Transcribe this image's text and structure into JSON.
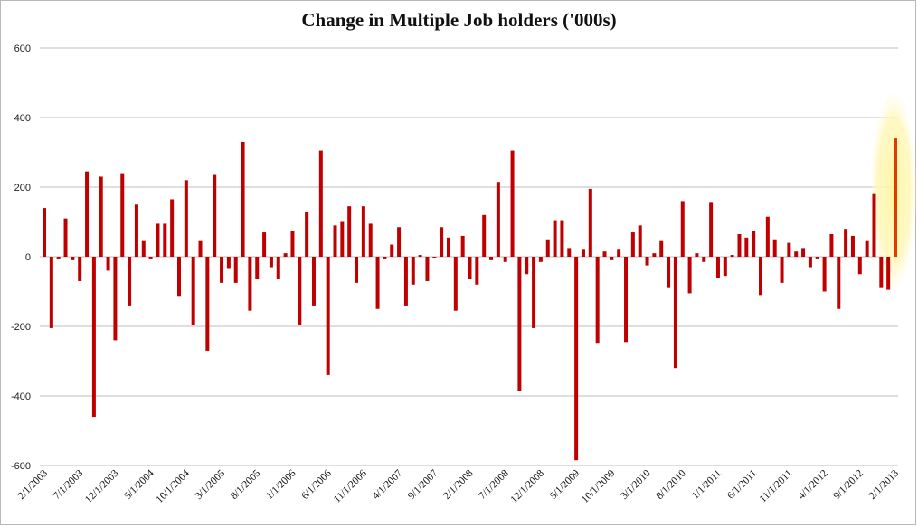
{
  "chart_data": {
    "type": "bar",
    "title": "Change in Multiple Job holders ('000s)",
    "xlabel": "",
    "ylabel": "",
    "ylim": [
      -600,
      600
    ],
    "yticks": [
      600,
      400,
      200,
      0,
      -200,
      -400,
      -600
    ],
    "grid": "horizontal",
    "legend": "none",
    "bar_color": "#c00000",
    "highlight_color": "#fff7b0",
    "highlight_bar_color": "#e03a00",
    "x_tick_labels": [
      "2/1/2003",
      "7/1/2003",
      "12/1/2003",
      "5/1/2004",
      "10/1/2004",
      "3/1/2005",
      "8/1/2005",
      "1/1/2006",
      "6/1/2006",
      "11/1/2006",
      "4/1/2007",
      "9/1/2007",
      "2/1/2008",
      "7/1/2008",
      "12/1/2008",
      "5/1/2009",
      "10/1/2009",
      "3/1/2010",
      "8/1/2010",
      "1/1/2011",
      "6/1/2011",
      "11/1/2011",
      "4/1/2012",
      "9/1/2012",
      "2/1/2013"
    ],
    "x_start": "2/1/2003",
    "x_end": "2/1/2013",
    "highlighted_period": "2/1/2013",
    "values": [
      140,
      -205,
      -5,
      110,
      -10,
      -70,
      245,
      -460,
      230,
      -40,
      -240,
      240,
      -140,
      150,
      45,
      -5,
      95,
      95,
      165,
      -115,
      220,
      -195,
      45,
      -270,
      235,
      -75,
      -35,
      -75,
      330,
      -155,
      -65,
      70,
      -30,
      -65,
      10,
      75,
      -195,
      130,
      -140,
      305,
      -340,
      90,
      100,
      145,
      -75,
      145,
      95,
      -150,
      -5,
      35,
      85,
      -140,
      -80,
      5,
      -70,
      0,
      85,
      55,
      -155,
      60,
      -65,
      -80,
      120,
      -10,
      215,
      -15,
      305,
      -385,
      -50,
      -205,
      -15,
      50,
      105,
      105,
      25,
      -585,
      20,
      195,
      -250,
      15,
      -10,
      20,
      -245,
      70,
      90,
      -25,
      10,
      45,
      -90,
      -320,
      160,
      -105,
      10,
      -15,
      155,
      -60,
      -55,
      5,
      65,
      55,
      75,
      -110,
      115,
      50,
      -75,
      40,
      15,
      25,
      -30,
      -5,
      -100,
      65,
      -150,
      80,
      60,
      -50,
      45,
      180,
      -90,
      -95,
      340
    ]
  }
}
